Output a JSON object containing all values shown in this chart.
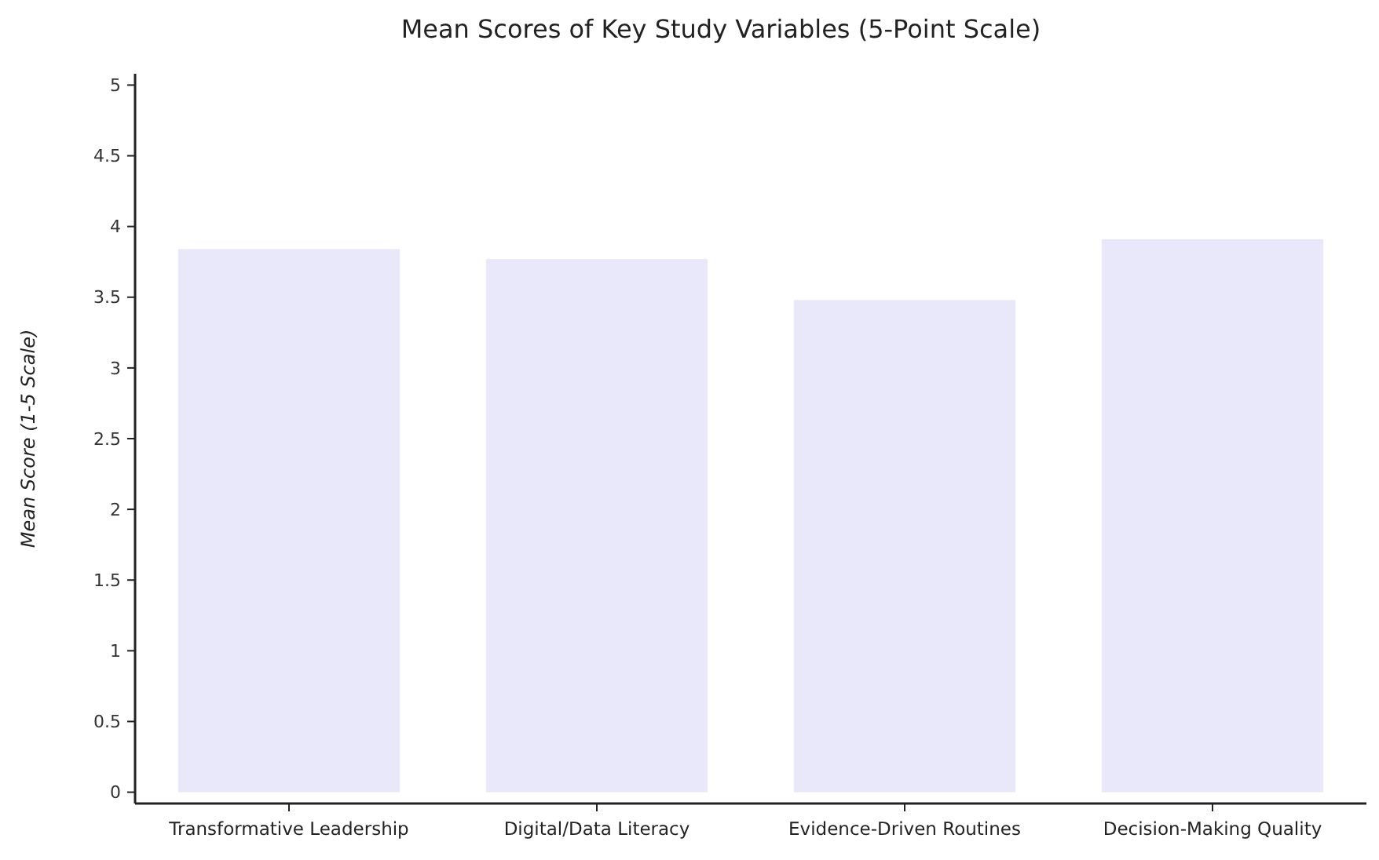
{
  "chart_data": {
    "type": "bar",
    "title": "Mean Scores of Key Study Variables (5-Point Scale)",
    "ylabel": "Mean Score (1-5 Scale)",
    "categories": [
      "Transformative Leadership",
      "Digital/Data Literacy",
      "Evidence-Driven Routines",
      "Decision-Making Quality"
    ],
    "values": [
      3.84,
      3.77,
      3.48,
      3.91
    ],
    "color": "#e8e8fa",
    "ylim": [
      -0.08,
      5.08
    ],
    "yticks": [
      0,
      0.5,
      1,
      1.5,
      2,
      2.5,
      3,
      3.5,
      4,
      4.5,
      5
    ],
    "grid": false
  }
}
